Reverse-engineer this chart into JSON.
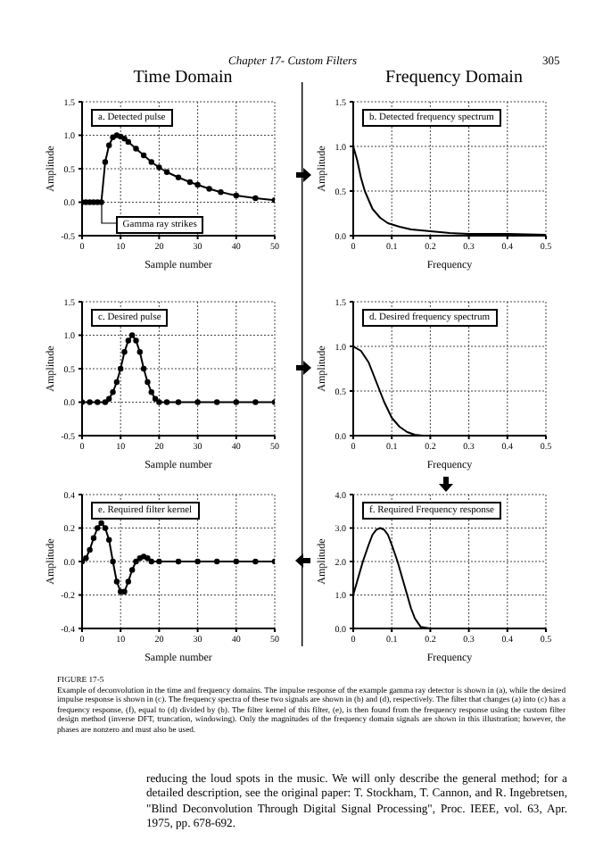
{
  "chart_data": [
    {
      "type": "line",
      "title": "Time Domain",
      "xlabel": "Sample number",
      "ylabel": "Amplitude",
      "color": "#000000",
      "marker": "circle",
      "grid": true,
      "x": [
        0,
        1,
        2,
        3,
        4,
        5,
        6,
        7,
        8,
        9,
        10,
        11,
        12,
        14,
        16,
        18,
        20,
        22,
        25,
        28,
        30,
        33,
        36,
        40,
        45,
        50
      ],
      "values": [
        0,
        0,
        0,
        0,
        0,
        0,
        0.6,
        0.85,
        0.97,
        1.0,
        0.98,
        0.95,
        0.9,
        0.8,
        0.7,
        0.6,
        0.52,
        0.45,
        0.37,
        0.3,
        0.26,
        0.2,
        0.15,
        0.1,
        0.06,
        0.03
      ],
      "xlim": [
        0,
        50
      ],
      "xticks": [
        0,
        10,
        20,
        30,
        40,
        50
      ],
      "ylim": [
        -0.5,
        1.5
      ],
      "yticks": [
        {
          "value": -0.5,
          "label": "-0.5"
        },
        {
          "value": 0,
          "label": "0.0"
        },
        {
          "value": 0.5,
          "label": "0.5"
        },
        {
          "value": 1,
          "label": "1.0"
        },
        {
          "value": 1.5,
          "label": "1.5"
        }
      ],
      "annotations": [
        "a. Detected pulse",
        {
          "text": "Gamma ray strikes",
          "x": 5,
          "y": 0
        },
        "Chapter 17- Custom Filters",
        "305"
      ]
    },
    {
      "type": "line",
      "title": "Frequency Domain",
      "xlabel": "Frequency",
      "ylabel": "Amplitude",
      "color": "#000000",
      "marker": "none",
      "grid": true,
      "x": [
        0,
        0.01,
        0.02,
        0.03,
        0.05,
        0.07,
        0.09,
        0.12,
        0.15,
        0.2,
        0.25,
        0.3,
        0.4,
        0.5
      ],
      "values": [
        1.0,
        0.85,
        0.65,
        0.5,
        0.3,
        0.2,
        0.14,
        0.1,
        0.07,
        0.05,
        0.03,
        0.02,
        0.02,
        0.01
      ],
      "xlim": [
        0,
        0.5
      ],
      "xticks": [
        0,
        0.1,
        0.2,
        0.3,
        0.4,
        0.5
      ],
      "ylim": [
        0,
        1.5
      ],
      "yticks": [
        {
          "value": 0,
          "label": "0.0"
        },
        {
          "value": 0.5,
          "label": "0.5"
        },
        {
          "value": 1,
          "label": "1.0"
        },
        {
          "value": 1.5,
          "label": "1.5"
        }
      ],
      "annotations": [
        "b. Detected frequency spectrum"
      ]
    },
    {
      "type": "line",
      "xlabel": "Sample number",
      "ylabel": "Amplitude",
      "color": "#000000",
      "marker": "circle",
      "grid": true,
      "x": [
        0,
        2,
        4,
        6,
        7,
        8,
        9,
        10,
        11,
        12,
        13,
        14,
        15,
        16,
        17,
        18,
        19,
        20,
        22,
        25,
        30,
        35,
        40,
        45,
        50
      ],
      "values": [
        0,
        0,
        0,
        0,
        0.05,
        0.15,
        0.3,
        0.5,
        0.75,
        0.92,
        1.0,
        0.92,
        0.75,
        0.5,
        0.3,
        0.15,
        0.05,
        0,
        0,
        0,
        0,
        0,
        0,
        0,
        0
      ],
      "xlim": [
        0,
        50
      ],
      "xticks": [
        0,
        10,
        20,
        30,
        40,
        50
      ],
      "ylim": [
        -0.5,
        1.5
      ],
      "yticks": [
        {
          "value": -0.5,
          "label": "-0.5"
        },
        {
          "value": 0,
          "label": "0.0"
        },
        {
          "value": 0.5,
          "label": "0.5"
        },
        {
          "value": 1,
          "label": "1.0"
        },
        {
          "value": 1.5,
          "label": "1.5"
        }
      ],
      "annotations": [
        "c. Desired pulse"
      ]
    },
    {
      "type": "line",
      "xlabel": "Frequency",
      "ylabel": "Amplitude",
      "color": "#000000",
      "marker": "none",
      "grid": true,
      "x": [
        0,
        0.02,
        0.04,
        0.06,
        0.08,
        0.1,
        0.12,
        0.14,
        0.16,
        0.18,
        0.25,
        0.3,
        0.4,
        0.5
      ],
      "values": [
        1.0,
        0.95,
        0.82,
        0.6,
        0.38,
        0.2,
        0.1,
        0.04,
        0.01,
        0,
        0,
        0,
        0,
        0
      ],
      "xlim": [
        0,
        0.5
      ],
      "xticks": [
        0,
        0.1,
        0.2,
        0.3,
        0.4,
        0.5
      ],
      "ylim": [
        0,
        1.5
      ],
      "yticks": [
        {
          "value": 0,
          "label": "0.0"
        },
        {
          "value": 0.5,
          "label": "0.5"
        },
        {
          "value": 1,
          "label": "1.0"
        },
        {
          "value": 1.5,
          "label": "1.5"
        }
      ],
      "annotations": [
        "d. Desired frequency spectrum"
      ]
    },
    {
      "type": "line",
      "xlabel": "Sample number",
      "ylabel": "Amplitude",
      "color": "#000000",
      "marker": "circle",
      "grid": true,
      "x": [
        0,
        1,
        2,
        3,
        4,
        5,
        6,
        7,
        8,
        9,
        10,
        11,
        12,
        13,
        14,
        15,
        16,
        17,
        18,
        20,
        25,
        30,
        35,
        40,
        45,
        50
      ],
      "values": [
        0,
        0.02,
        0.07,
        0.14,
        0.2,
        0.23,
        0.2,
        0.13,
        0,
        -0.12,
        -0.18,
        -0.18,
        -0.12,
        -0.05,
        0,
        0.02,
        0.03,
        0.02,
        0,
        0,
        0,
        0,
        0,
        0,
        0,
        0
      ],
      "xlim": [
        0,
        50
      ],
      "xticks": [
        0,
        10,
        20,
        30,
        40,
        50
      ],
      "ylim": [
        -0.4,
        0.4
      ],
      "yticks": [
        {
          "value": -0.4,
          "label": "-0.4"
        },
        {
          "value": -0.2,
          "label": "-0.2"
        },
        {
          "value": 0,
          "label": "0.0"
        },
        {
          "value": 0.2,
          "label": "0.2"
        },
        {
          "value": 0.4,
          "label": "0.4"
        }
      ],
      "annotations": [
        "e. Required filter kernel"
      ]
    },
    {
      "type": "line",
      "xlabel": "Frequency",
      "ylabel": "Amplitude",
      "color": "#000000",
      "marker": "none",
      "grid": true,
      "x": [
        0,
        0.01,
        0.025,
        0.04,
        0.05,
        0.06,
        0.07,
        0.08,
        0.09,
        0.1,
        0.115,
        0.13,
        0.14,
        0.15,
        0.16,
        0.175,
        0.2,
        0.3,
        0.4,
        0.5
      ],
      "values": [
        1.0,
        1.4,
        2.0,
        2.5,
        2.8,
        2.95,
        3.0,
        2.95,
        2.8,
        2.5,
        2.0,
        1.4,
        1.0,
        0.6,
        0.3,
        0.05,
        0,
        0,
        0,
        0
      ],
      "xlim": [
        0,
        0.5
      ],
      "xticks": [
        0,
        0.1,
        0.2,
        0.3,
        0.4,
        0.5
      ],
      "ylim": [
        0,
        4
      ],
      "yticks": [
        {
          "value": 0,
          "label": "0.0"
        },
        {
          "value": 1,
          "label": "1.0"
        },
        {
          "value": 2,
          "label": "2.0"
        },
        {
          "value": 3,
          "label": "3.0"
        },
        {
          "value": 4,
          "label": "4.0"
        }
      ],
      "annotations": [
        "f. Required Frequency response",
        "FIGURE 17-5",
        "Example of deconvolution in the time and frequency domains. The impulse response of the example gamma ray detector is shown in (a), while the desired impulse response is shown in (c). The frequency spectra of these two signals are shown in (b) and (d), respectively. The filter that changes (a) into (c) has a frequency response, (f), equal to (d) divided by (b). The filter kernel of this filter, (e), is then found from the frequency response using the custom filter design method (inverse DFT, truncation, windowing). Only the magnitudes of the frequency domain signals are shown in this illustration; however, the phases are nonzero and must also be used.",
        "reducing the loud spots in the music. We will only describe the general method; for a detailed description, see the original paper: T. Stockham, T. Cannon, and R. Ingebretsen, \"Blind Deconvolution Through Digital Signal Processing\", Proc. IEEE, vol. 63, Apr. 1975, pp. 678-692."
      ]
    }
  ]
}
